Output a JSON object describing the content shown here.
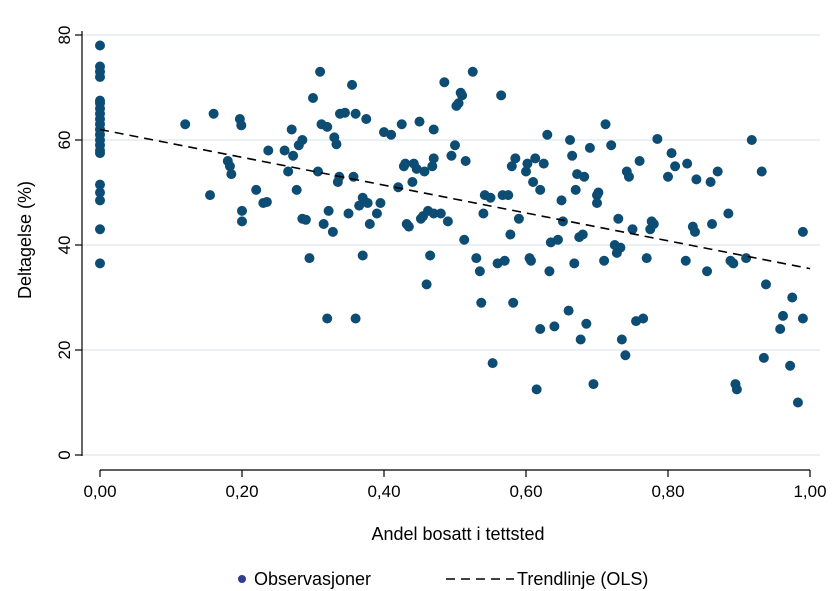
{
  "chart_data": {
    "type": "scatter",
    "xlabel": "Andel bosatt i tettsted",
    "ylabel": "Deltagelse (%)",
    "xlim": [
      0,
      1
    ],
    "ylim": [
      0,
      80
    ],
    "x_ticks": [
      {
        "value": 0.0,
        "label": "0,00"
      },
      {
        "value": 0.2,
        "label": "0,20"
      },
      {
        "value": 0.4,
        "label": "0,40"
      },
      {
        "value": 0.6,
        "label": "0,60"
      },
      {
        "value": 0.8,
        "label": "0,80"
      },
      {
        "value": 1.0,
        "label": "1,00"
      }
    ],
    "y_ticks": [
      {
        "value": 0,
        "label": "0"
      },
      {
        "value": 20,
        "label": "20"
      },
      {
        "value": 40,
        "label": "40"
      },
      {
        "value": 60,
        "label": "60"
      },
      {
        "value": 80,
        "label": "80"
      }
    ],
    "grid": "horizontal",
    "legend_position": "bottom",
    "colors": {
      "points": "#0d4c73",
      "trend": "#000000",
      "grid": "#dde8ef",
      "legend_marker": "#2f3d8f"
    },
    "series": [
      {
        "name": "Observasjoner",
        "kind": "points",
        "points": [
          [
            0,
            78
          ],
          [
            0,
            74
          ],
          [
            0,
            73
          ],
          [
            0,
            72
          ],
          [
            0,
            67.5
          ],
          [
            0,
            67
          ],
          [
            0,
            66
          ],
          [
            0,
            65
          ],
          [
            0,
            64
          ],
          [
            0,
            63
          ],
          [
            0,
            62
          ],
          [
            0,
            61
          ],
          [
            0,
            60
          ],
          [
            0,
            59
          ],
          [
            0,
            58
          ],
          [
            0,
            57.5
          ],
          [
            0,
            51.5
          ],
          [
            0,
            50
          ],
          [
            0,
            48.5
          ],
          [
            0,
            43
          ],
          [
            0,
            36.5
          ],
          [
            0.12,
            63
          ],
          [
            0.155,
            49.5
          ],
          [
            0.16,
            65
          ],
          [
            0.18,
            56
          ],
          [
            0.183,
            55
          ],
          [
            0.185,
            53.5
          ],
          [
            0.197,
            64
          ],
          [
            0.199,
            62.8
          ],
          [
            0.2,
            46.5
          ],
          [
            0.2,
            44.5
          ],
          [
            0.22,
            50.5
          ],
          [
            0.23,
            48
          ],
          [
            0.235,
            48.2
          ],
          [
            0.237,
            58
          ],
          [
            0.26,
            58
          ],
          [
            0.265,
            54
          ],
          [
            0.27,
            62
          ],
          [
            0.272,
            57
          ],
          [
            0.277,
            50.5
          ],
          [
            0.28,
            59
          ],
          [
            0.285,
            60
          ],
          [
            0.285,
            45
          ],
          [
            0.29,
            44.8
          ],
          [
            0.295,
            37.5
          ],
          [
            0.3,
            68
          ],
          [
            0.307,
            54
          ],
          [
            0.31,
            73
          ],
          [
            0.312,
            63
          ],
          [
            0.315,
            44
          ],
          [
            0.32,
            62.5
          ],
          [
            0.322,
            46.5
          ],
          [
            0.32,
            26
          ],
          [
            0.328,
            42.5
          ],
          [
            0.33,
            60.5
          ],
          [
            0.333,
            59.2
          ],
          [
            0.335,
            52
          ],
          [
            0.337,
            53
          ],
          [
            0.338,
            65
          ],
          [
            0.345,
            65.2
          ],
          [
            0.35,
            46
          ],
          [
            0.355,
            70.5
          ],
          [
            0.357,
            53
          ],
          [
            0.36,
            65
          ],
          [
            0.36,
            26
          ],
          [
            0.365,
            47.5
          ],
          [
            0.37,
            49
          ],
          [
            0.37,
            38
          ],
          [
            0.375,
            64
          ],
          [
            0.377,
            48
          ],
          [
            0.38,
            44
          ],
          [
            0.39,
            46
          ],
          [
            0.395,
            48
          ],
          [
            0.4,
            61.5
          ],
          [
            0.41,
            61
          ],
          [
            0.42,
            51
          ],
          [
            0.425,
            63
          ],
          [
            0.428,
            55
          ],
          [
            0.43,
            55.5
          ],
          [
            0.432,
            44
          ],
          [
            0.435,
            43.5
          ],
          [
            0.44,
            52
          ],
          [
            0.442,
            55.5
          ],
          [
            0.446,
            54.5
          ],
          [
            0.45,
            63.5
          ],
          [
            0.452,
            45
          ],
          [
            0.455,
            45.5
          ],
          [
            0.457,
            54
          ],
          [
            0.46,
            32.5
          ],
          [
            0.462,
            46.5
          ],
          [
            0.465,
            38
          ],
          [
            0.468,
            55
          ],
          [
            0.47,
            56.5
          ],
          [
            0.47,
            62
          ],
          [
            0.47,
            46
          ],
          [
            0.48,
            46
          ],
          [
            0.485,
            71
          ],
          [
            0.49,
            44.5
          ],
          [
            0.495,
            57
          ],
          [
            0.5,
            59
          ],
          [
            0.502,
            66.5
          ],
          [
            0.505,
            67
          ],
          [
            0.508,
            69
          ],
          [
            0.51,
            68.5
          ],
          [
            0.513,
            41
          ],
          [
            0.515,
            56
          ],
          [
            0.525,
            73
          ],
          [
            0.53,
            37.5
          ],
          [
            0.535,
            35
          ],
          [
            0.537,
            29
          ],
          [
            0.54,
            46
          ],
          [
            0.542,
            49.5
          ],
          [
            0.55,
            49
          ],
          [
            0.553,
            17.5
          ],
          [
            0.56,
            36.5
          ],
          [
            0.565,
            68.5
          ],
          [
            0.567,
            49.5
          ],
          [
            0.57,
            37
          ],
          [
            0.575,
            49.5
          ],
          [
            0.578,
            42
          ],
          [
            0.58,
            55
          ],
          [
            0.582,
            29
          ],
          [
            0.585,
            56.5
          ],
          [
            0.59,
            45
          ],
          [
            0.6,
            54
          ],
          [
            0.602,
            55.5
          ],
          [
            0.605,
            37.5
          ],
          [
            0.607,
            37
          ],
          [
            0.61,
            52
          ],
          [
            0.613,
            56.5
          ],
          [
            0.615,
            12.5
          ],
          [
            0.62,
            50.5
          ],
          [
            0.62,
            24
          ],
          [
            0.625,
            55.5
          ],
          [
            0.63,
            61
          ],
          [
            0.633,
            35
          ],
          [
            0.635,
            40.5
          ],
          [
            0.64,
            24.5
          ],
          [
            0.645,
            41
          ],
          [
            0.65,
            48.5
          ],
          [
            0.652,
            44.5
          ],
          [
            0.66,
            27.5
          ],
          [
            0.662,
            60
          ],
          [
            0.665,
            57
          ],
          [
            0.668,
            36.5
          ],
          [
            0.67,
            50.5
          ],
          [
            0.672,
            53.5
          ],
          [
            0.675,
            41.5
          ],
          [
            0.677,
            22
          ],
          [
            0.68,
            42
          ],
          [
            0.682,
            53
          ],
          [
            0.685,
            25
          ],
          [
            0.69,
            58.5
          ],
          [
            0.695,
            13.5
          ],
          [
            0.7,
            49.5
          ],
          [
            0.7,
            48
          ],
          [
            0.702,
            50
          ],
          [
            0.71,
            37
          ],
          [
            0.712,
            63
          ],
          [
            0.72,
            59
          ],
          [
            0.725,
            40
          ],
          [
            0.728,
            38.5
          ],
          [
            0.73,
            45
          ],
          [
            0.733,
            39.5
          ],
          [
            0.735,
            22
          ],
          [
            0.74,
            19
          ],
          [
            0.742,
            54
          ],
          [
            0.745,
            53
          ],
          [
            0.75,
            43
          ],
          [
            0.755,
            25.5
          ],
          [
            0.76,
            56
          ],
          [
            0.765,
            26
          ],
          [
            0.77,
            37.5
          ],
          [
            0.775,
            43
          ],
          [
            0.777,
            44.5
          ],
          [
            0.78,
            44
          ],
          [
            0.785,
            60.2
          ],
          [
            0.8,
            53
          ],
          [
            0.805,
            57.5
          ],
          [
            0.81,
            55
          ],
          [
            0.825,
            37
          ],
          [
            0.827,
            55.5
          ],
          [
            0.835,
            43.5
          ],
          [
            0.838,
            42.5
          ],
          [
            0.84,
            52.5
          ],
          [
            0.855,
            35
          ],
          [
            0.86,
            52
          ],
          [
            0.862,
            44
          ],
          [
            0.87,
            54
          ],
          [
            0.885,
            46
          ],
          [
            0.888,
            37
          ],
          [
            0.892,
            36.5
          ],
          [
            0.895,
            13.5
          ],
          [
            0.897,
            12.5
          ],
          [
            0.91,
            37.5
          ],
          [
            0.918,
            60
          ],
          [
            0.932,
            54
          ],
          [
            0.935,
            18.5
          ],
          [
            0.938,
            32.5
          ],
          [
            0.958,
            24
          ],
          [
            0.962,
            26.5
          ],
          [
            0.972,
            17
          ],
          [
            0.975,
            30
          ],
          [
            0.983,
            10
          ],
          [
            0.99,
            42.5
          ],
          [
            0.99,
            26
          ]
        ]
      },
      {
        "name": "Trendlinje (OLS)",
        "kind": "line",
        "dash": "dashed",
        "points": [
          [
            0,
            62
          ],
          [
            1,
            35.5
          ]
        ]
      }
    ]
  }
}
